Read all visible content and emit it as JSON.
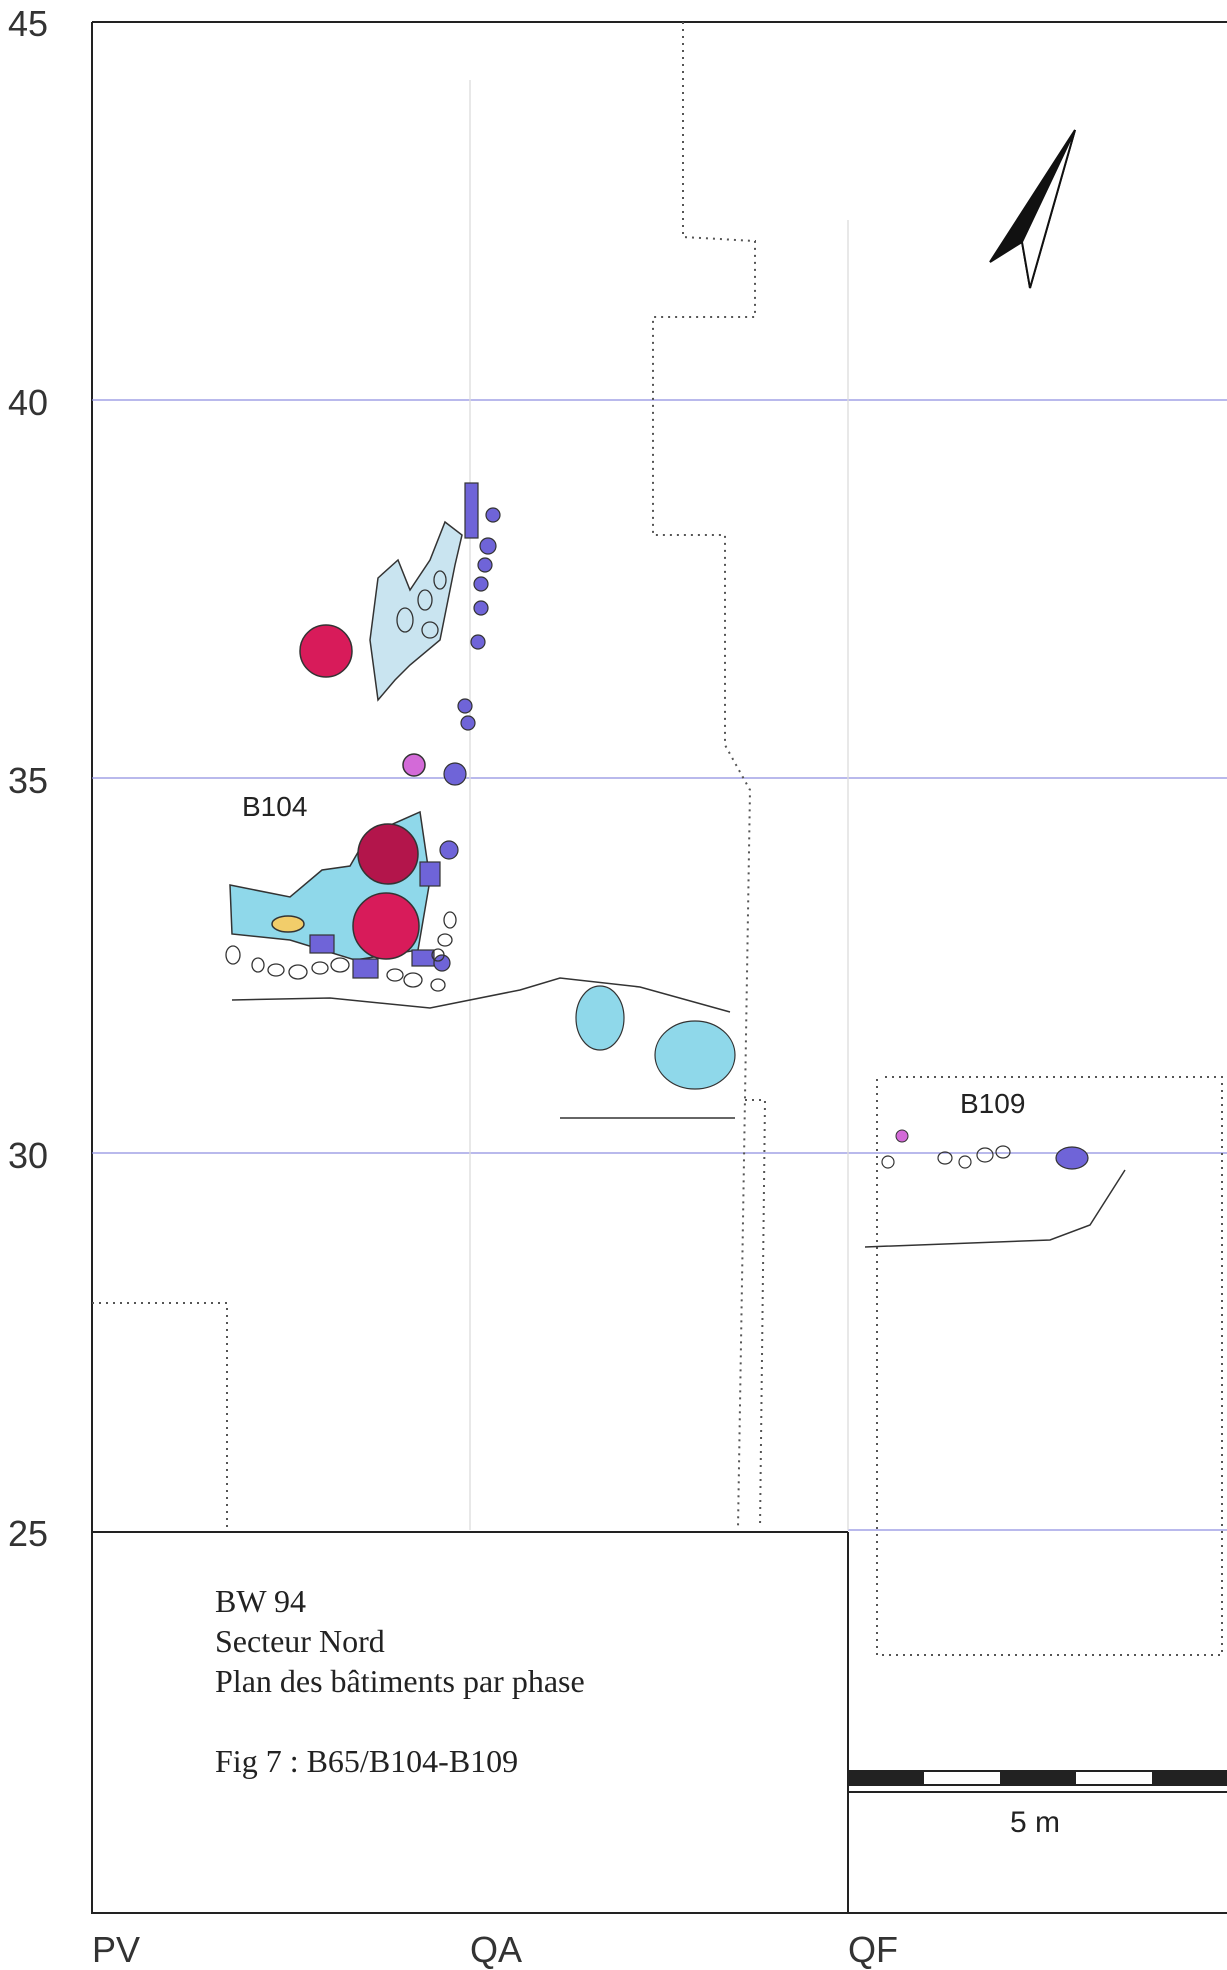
{
  "y_axis_labels": [
    "45",
    "40",
    "35",
    "30",
    "25"
  ],
  "x_axis_labels": [
    "PV",
    "QA",
    "QF"
  ],
  "building_labels": {
    "b104": "B104",
    "b109": "B109"
  },
  "caption": {
    "line1": "BW 94",
    "line2": "Secteur Nord",
    "line3": "Plan des bâtiments par phase",
    "line4": "Fig 7 : B65/B104-B109"
  },
  "scale_bar": {
    "label": "5 m"
  },
  "colors": {
    "grid_line": "#8f8fe0",
    "post_hole_red": "#d81b5a",
    "stone_blue": "#6f64d8",
    "floor_cyan": "#8fd8ea",
    "hearth_yellow": "#f2cd6a",
    "pink_feature": "#d36ad8"
  }
}
